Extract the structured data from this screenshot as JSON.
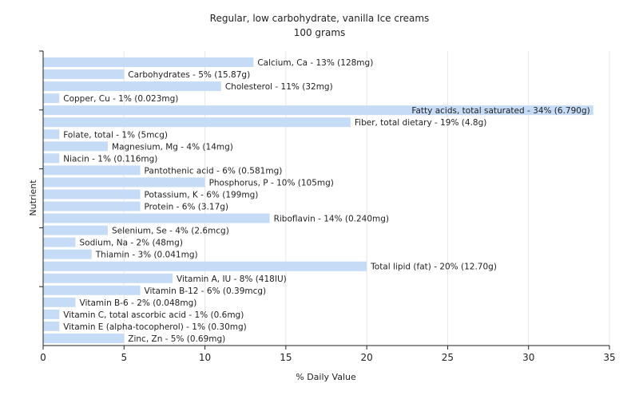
{
  "chart_data": {
    "type": "bar",
    "orientation": "horizontal",
    "title": "Regular, low carbohydrate, vanilla Ice creams",
    "subtitle": "100 grams",
    "xlabel": "% Daily Value",
    "ylabel": "Nutrient",
    "xlim": [
      0,
      35
    ],
    "xticks": [
      0,
      5,
      10,
      15,
      20,
      25,
      30,
      35
    ],
    "grid": true,
    "bar_color": "#c6dcf6",
    "categories": [
      "Calcium, Ca",
      "Carbohydrates",
      "Cholesterol",
      "Copper, Cu",
      "Fatty acids, total saturated",
      "Fiber, total dietary",
      "Folate, total",
      "Magnesium, Mg",
      "Niacin",
      "Pantothenic acid",
      "Phosphorus, P",
      "Potassium, K",
      "Protein",
      "Riboflavin",
      "Selenium, Se",
      "Sodium, Na",
      "Thiamin",
      "Total lipid (fat)",
      "Vitamin A, IU",
      "Vitamin B-12",
      "Vitamin B-6",
      "Vitamin C, total ascorbic acid",
      "Vitamin E (alpha-tocopherol)",
      "Zinc, Zn"
    ],
    "values": [
      13,
      5,
      11,
      1,
      34,
      19,
      1,
      4,
      1,
      6,
      10,
      6,
      6,
      14,
      4,
      2,
      3,
      20,
      8,
      6,
      2,
      1,
      1,
      5
    ],
    "labels": [
      "Calcium, Ca - 13% (128mg)",
      "Carbohydrates - 5% (15.87g)",
      "Cholesterol - 11% (32mg)",
      "Copper, Cu - 1% (0.023mg)",
      "Fatty acids, total saturated - 34% (6.790g)",
      "Fiber, total dietary - 19% (4.8g)",
      "Folate, total - 1% (5mcg)",
      "Magnesium, Mg - 4% (14mg)",
      "Niacin - 1% (0.116mg)",
      "Pantothenic acid - 6% (0.581mg)",
      "Phosphorus, P - 10% (105mg)",
      "Potassium, K - 6% (199mg)",
      "Protein - 6% (3.17g)",
      "Riboflavin - 14% (0.240mg)",
      "Selenium, Se - 4% (2.6mcg)",
      "Sodium, Na - 2% (48mg)",
      "Thiamin - 3% (0.041mg)",
      "Total lipid (fat) - 20% (12.70g)",
      "Vitamin A, IU - 8% (418IU)",
      "Vitamin B-12 - 6% (0.39mcg)",
      "Vitamin B-6 - 2% (0.048mg)",
      "Vitamin C, total ascorbic acid - 1% (0.6mg)",
      "Vitamin E (alpha-tocopherol) - 1% (0.30mg)",
      "Zinc, Zn - 5% (0.69mg)"
    ]
  }
}
